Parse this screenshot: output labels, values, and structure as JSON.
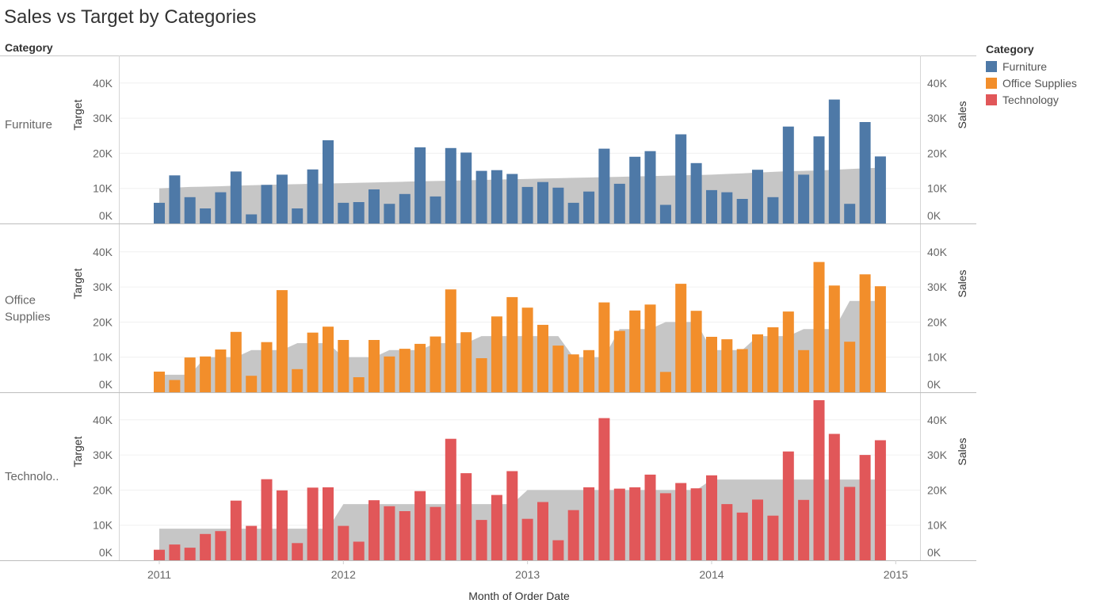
{
  "title": "Sales vs Target by Categories",
  "legend": {
    "title": "Category",
    "items": [
      {
        "label": "Furniture",
        "color": "#4e79a7"
      },
      {
        "label": "Office Supplies",
        "color": "#f28e2b"
      },
      {
        "label": "Technology",
        "color": "#e15759"
      }
    ]
  },
  "chart_data": {
    "type": "bar",
    "title": "Sales vs Target by Categories",
    "row_header": "Category",
    "xlabel": "Month of Order Date",
    "x_ticks": [
      "2011",
      "2012",
      "2013",
      "2014",
      "2015"
    ],
    "left_axis_label": "Target",
    "right_axis_label": "Sales",
    "y_ticks": [
      "0K",
      "10K",
      "20K",
      "30K",
      "40K"
    ],
    "ylim": [
      0,
      47000
    ],
    "target_color": "#c3c3c3",
    "months": [
      "2011-01",
      "2011-02",
      "2011-03",
      "2011-04",
      "2011-05",
      "2011-06",
      "2011-07",
      "2011-08",
      "2011-09",
      "2011-10",
      "2011-11",
      "2011-12",
      "2012-01",
      "2012-02",
      "2012-03",
      "2012-04",
      "2012-05",
      "2012-06",
      "2012-07",
      "2012-08",
      "2012-09",
      "2012-10",
      "2012-11",
      "2012-12",
      "2013-01",
      "2013-02",
      "2013-03",
      "2013-04",
      "2013-05",
      "2013-06",
      "2013-07",
      "2013-08",
      "2013-09",
      "2013-10",
      "2013-11",
      "2013-12",
      "2014-01",
      "2014-02",
      "2014-03",
      "2014-04",
      "2014-05",
      "2014-06",
      "2014-07",
      "2014-08",
      "2014-09",
      "2014-10",
      "2014-11",
      "2014-12"
    ],
    "panels": [
      {
        "category": "Furniture",
        "row_label": "Furniture",
        "color": "#4e79a7",
        "sales": [
          5900,
          13700,
          7500,
          4300,
          8900,
          14800,
          2600,
          11000,
          13900,
          4300,
          15400,
          23700,
          5900,
          6100,
          9700,
          5600,
          8400,
          21700,
          7700,
          21500,
          20200,
          15000,
          15200,
          14100,
          10400,
          11800,
          10200,
          5900,
          9100,
          21300,
          11300,
          19000,
          20600,
          5300,
          25400,
          17200,
          9500,
          8900,
          7000,
          15300,
          7500,
          27600,
          13900,
          24800,
          35300,
          5600,
          28900,
          19100
        ],
        "target": [
          10000,
          10200,
          10400,
          10500,
          10600,
          10800,
          10900,
          11000,
          11100,
          11200,
          11300,
          11400,
          11500,
          11600,
          11700,
          11800,
          11900,
          12000,
          12100,
          12200,
          12300,
          12400,
          12500,
          12600,
          12700,
          12800,
          12900,
          13000,
          13100,
          13200,
          13300,
          13400,
          13500,
          13600,
          13700,
          13800,
          13900,
          14100,
          14300,
          14500,
          14700,
          14900,
          15000,
          15100,
          15300,
          15500,
          15700,
          15900
        ]
      },
      {
        "category": "Office Supplies",
        "row_label": "Office Supplies",
        "color": "#f28e2b",
        "sales": [
          5900,
          3500,
          9900,
          10200,
          12200,
          17200,
          4700,
          14300,
          29100,
          6600,
          17000,
          18700,
          14900,
          4300,
          14900,
          10200,
          12400,
          13800,
          15900,
          29300,
          17100,
          9700,
          21600,
          27100,
          24100,
          19200,
          13300,
          10800,
          12000,
          25600,
          17500,
          23300,
          25000,
          5800,
          30900,
          23200,
          15800,
          15100,
          12300,
          16500,
          18500,
          23000,
          12000,
          37100,
          30400,
          14400,
          33600,
          30200
        ],
        "target": [
          5000,
          5000,
          5000,
          10000,
          10000,
          10000,
          12000,
          12000,
          12000,
          14000,
          14000,
          14000,
          10000,
          10000,
          10000,
          12000,
          12000,
          12000,
          14000,
          14000,
          14000,
          16000,
          16000,
          16000,
          16000,
          16000,
          16000,
          10000,
          10000,
          10000,
          18000,
          18000,
          18000,
          20000,
          20000,
          20000,
          12000,
          12000,
          12000,
          16000,
          16000,
          16000,
          18000,
          18000,
          18000,
          26000,
          26000,
          26000
        ]
      },
      {
        "category": "Technology",
        "row_label": "Technolo..",
        "color": "#e15759",
        "sales": [
          3000,
          4500,
          3600,
          7500,
          8300,
          17000,
          9800,
          23100,
          19900,
          4900,
          20700,
          20800,
          9800,
          5300,
          17100,
          15400,
          14000,
          19700,
          15200,
          34600,
          24800,
          11500,
          18600,
          25400,
          11800,
          16600,
          5700,
          14300,
          20800,
          40500,
          20400,
          20800,
          24400,
          19100,
          22000,
          20500,
          24200,
          16000,
          13600,
          17300,
          12700,
          31000,
          17200,
          45600,
          36000,
          20900,
          30000,
          34200
        ],
        "target": [
          9000,
          9000,
          9000,
          9000,
          9000,
          9000,
          9000,
          9000,
          9000,
          9000,
          9000,
          9000,
          16000,
          16000,
          16000,
          16000,
          16000,
          16000,
          16000,
          16000,
          16000,
          16000,
          16000,
          16000,
          20000,
          20000,
          20000,
          20000,
          20000,
          20000,
          20000,
          20000,
          20000,
          20000,
          20000,
          20000,
          23000,
          23000,
          23000,
          23000,
          23000,
          23000,
          23000,
          23000,
          23000,
          23000,
          23000,
          23000
        ]
      }
    ]
  }
}
